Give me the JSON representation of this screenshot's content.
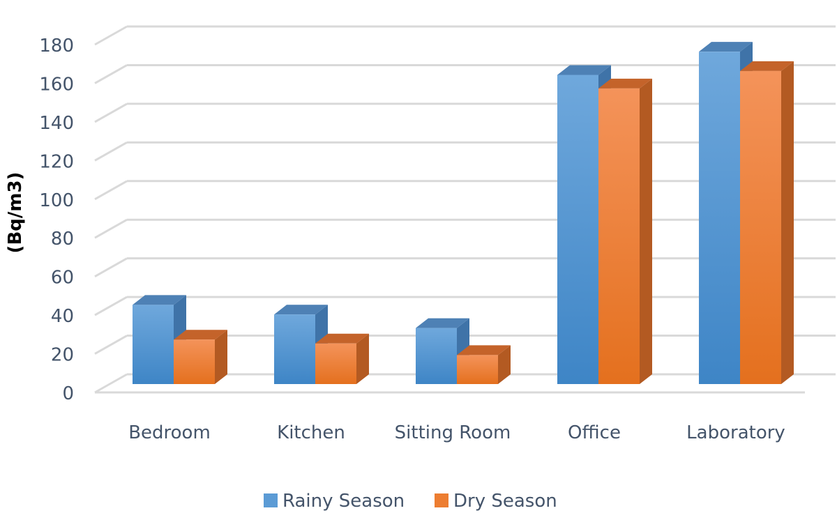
{
  "chart_data": {
    "type": "bar",
    "style": "3d-clustered-column",
    "categories": [
      "Bedroom",
      "Kitchen",
      "Sitting Room",
      "Office",
      "Laboratory"
    ],
    "series": [
      {
        "name": "Rainy Season",
        "values": [
          41,
          36,
          29,
          160,
          172
        ],
        "color": "#5B9BD5"
      },
      {
        "name": "Dry Season",
        "values": [
          23,
          21,
          15,
          153,
          162
        ],
        "color": "#ED7D31"
      }
    ],
    "title": "",
    "xlabel": "",
    "ylabel": "(Bq/m3)",
    "ylim": [
      0,
      180
    ],
    "yticks": [
      "0",
      "20",
      "40",
      "60",
      "80",
      "100",
      "120",
      "140",
      "160",
      "180"
    ],
    "grid": true,
    "legend_position": "bottom"
  }
}
